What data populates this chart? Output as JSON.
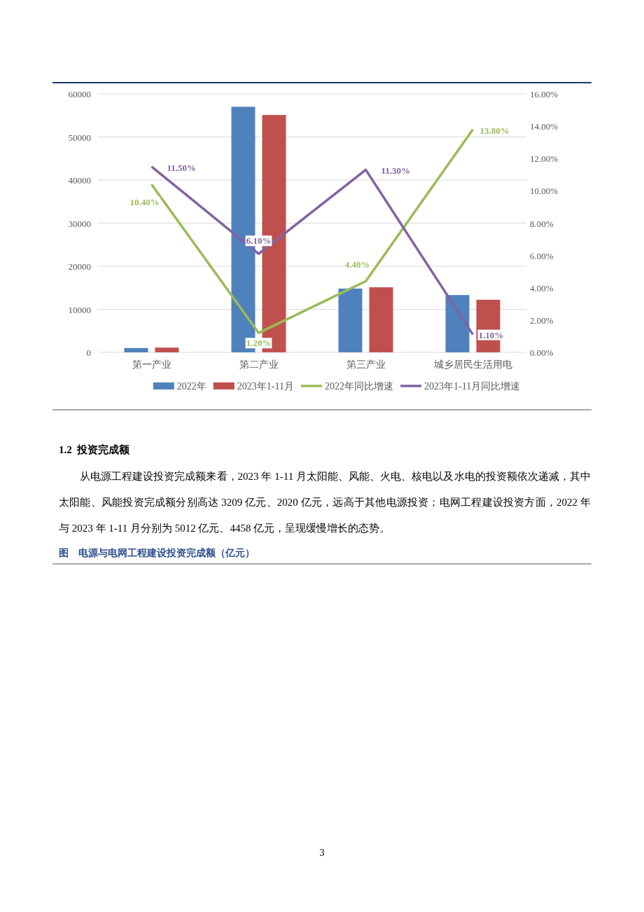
{
  "chart_data": {
    "type": "bar",
    "categories": [
      "第一产业",
      "第二产业",
      "第三产业",
      "城乡居民生活用电"
    ],
    "series": [
      {
        "name": "2022年",
        "color": "#4f81bd",
        "values": [
          1000,
          57000,
          14800,
          13300
        ]
      },
      {
        "name": "2023年1-11月",
        "color": "#c0504d",
        "values": [
          1100,
          55100,
          15100,
          12200
        ]
      },
      {
        "name": "2022年同比增速",
        "type": "line",
        "axis": "y2",
        "color": "#9bbb59",
        "values": [
          10.4,
          1.2,
          4.4,
          13.8
        ],
        "value_labels": [
          "10.40%",
          "1.20%",
          "4.40%",
          "13.80%"
        ]
      },
      {
        "name": "2023年1-11月同比增速",
        "type": "line",
        "axis": "y2",
        "color": "#8064a2",
        "values": [
          11.5,
          6.1,
          11.3,
          1.1
        ],
        "value_labels": [
          "11.50%",
          "6.10%",
          "11.30%",
          "1.10%"
        ]
      }
    ],
    "ylim": [
      0,
      60000
    ],
    "yticks": [
      0,
      10000,
      20000,
      30000,
      40000,
      50000,
      60000
    ],
    "y2lim": [
      0,
      16
    ],
    "y2ticks": [
      {
        "value": 0,
        "label": "0.00%"
      },
      {
        "value": 2,
        "label": "2.00%"
      },
      {
        "value": 4,
        "label": "4.00%"
      },
      {
        "value": 6,
        "label": "6.00%"
      },
      {
        "value": 8,
        "label": "8.00%"
      },
      {
        "value": 10,
        "label": "10.00%"
      },
      {
        "value": 12,
        "label": "12.00%"
      },
      {
        "value": 14,
        "label": "14.00%"
      },
      {
        "value": 16,
        "label": "16.00%"
      }
    ],
    "grid": "y",
    "legend": "bottom",
    "annotations": [
      "1.2  投资完成额",
      "从电源工程建设投资完成额来看，2023 年 1-11 月太阳能、风能、火电、核电以及水电的投资额依次递减，其中太阳能、风能投资完成额分别高达 3209 亿元、2020 亿元，远高于其他电源投资；电网工程建设投资方面，2022 年与 2023 年 1-11 月分别为 5012 亿元、4458 亿元，呈现缓慢增长的态势。",
      "图　电源与电网工程建设投资完成额（亿元）",
      "3"
    ]
  }
}
